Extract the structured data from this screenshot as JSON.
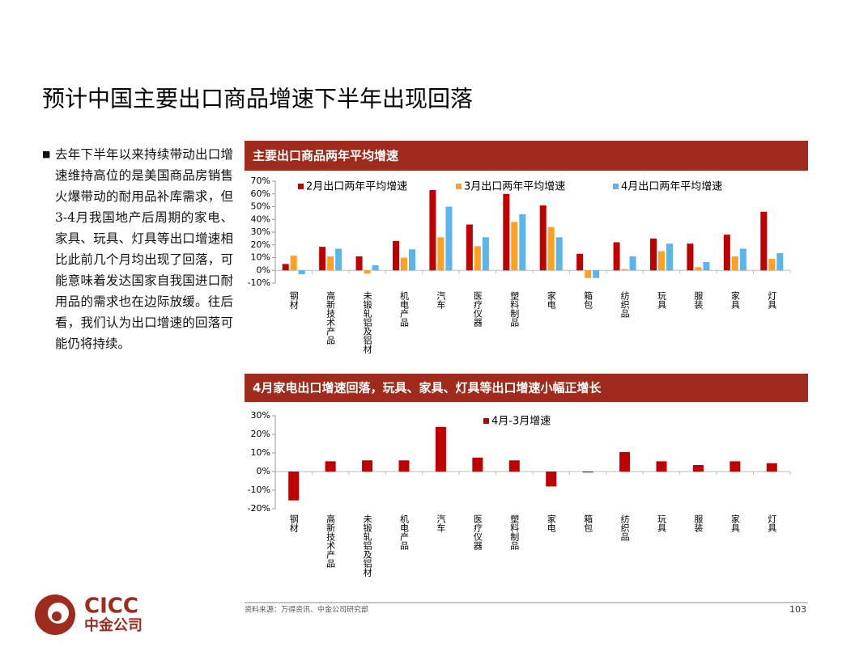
{
  "title": "预计中国主要出口商品增速下半年出现回落",
  "bullet": "去年下半年以来持续带动出口增速维持高位的是美国商品房销售火爆带动的耐用品补库需求，但3-4月我国地产后周期的家电、家具、玩具、灯具等出口增速相比此前几个月均出现了回落，可能意味着发达国家自我国进口耐用品的需求也在边际放缓。往后看，我们认为出口增速的回落可能仍将持续。",
  "chart_data": [
    {
      "type": "bar",
      "title": "主要出口商品两年平均增速",
      "categories": [
        "钢材",
        "高新技术产品",
        "未锻轧铝及铝材",
        "机电产品",
        "汽车",
        "医疗仪器",
        "塑料制品",
        "家电",
        "箱包",
        "纺织品",
        "玩具",
        "服装",
        "家具",
        "灯具"
      ],
      "series": [
        {
          "name": "2月出口两年平均增速",
          "color": "#c00000",
          "values": [
            5,
            18.5,
            11,
            23,
            63,
            36,
            60,
            51,
            13,
            22,
            25,
            21,
            28,
            46
          ]
        },
        {
          "name": "3月出口两年平均增速",
          "color": "#ffa020",
          "values": [
            11.5,
            11,
            -2.5,
            10,
            26,
            19,
            38,
            34,
            -6,
            1,
            15,
            2.5,
            11,
            9
          ]
        },
        {
          "name": "4月出口两年平均增速",
          "color": "#5ab4ee",
          "values": [
            -3,
            17,
            4,
            16.5,
            50,
            26,
            44,
            26,
            -6,
            11,
            21,
            6.5,
            17,
            13.5
          ]
        }
      ],
      "ylim": [
        -10,
        70
      ],
      "yticks": [
        {
          "value": -10,
          "label": "-10%"
        },
        {
          "value": 0,
          "label": "0%"
        },
        {
          "value": 10,
          "label": "10%"
        },
        {
          "value": 20,
          "label": "20%"
        },
        {
          "value": 30,
          "label": "30%"
        },
        {
          "value": 40,
          "label": "40%"
        },
        {
          "value": 50,
          "label": "50%"
        },
        {
          "value": 60,
          "label": "60%"
        },
        {
          "value": 70,
          "label": "70%"
        }
      ]
    },
    {
      "type": "bar",
      "title": "4月家电出口增速回落，玩具、家具、灯具等出口增速小幅正增长",
      "categories": [
        "钢材",
        "高新技术产品",
        "未锻轧铝及铝材",
        "机电产品",
        "汽车",
        "医疗仪器",
        "塑料制品",
        "家电",
        "箱包",
        "纺织品",
        "玩具",
        "服装",
        "家具",
        "灯具"
      ],
      "series": [
        {
          "name": "4月-3月增速",
          "color": "#c00000",
          "values": [
            -15.5,
            5.5,
            6,
            6,
            24,
            7.5,
            6,
            -8,
            -0.5,
            10.5,
            5.5,
            3.5,
            5.5,
            4.5
          ]
        }
      ],
      "ylim": [
        -20,
        30
      ],
      "yticks": [
        {
          "value": -20,
          "label": "-20%"
        },
        {
          "value": -10,
          "label": "-10%"
        },
        {
          "value": 0,
          "label": "0%"
        },
        {
          "value": 10,
          "label": "10%"
        },
        {
          "value": 20,
          "label": "20%"
        },
        {
          "value": 30,
          "label": "30%"
        }
      ]
    }
  ],
  "source": "资料来源：万得资讯、中金公司研究部",
  "page_number": "103",
  "logo": {
    "en": "CICC",
    "cn": "中金公司"
  }
}
